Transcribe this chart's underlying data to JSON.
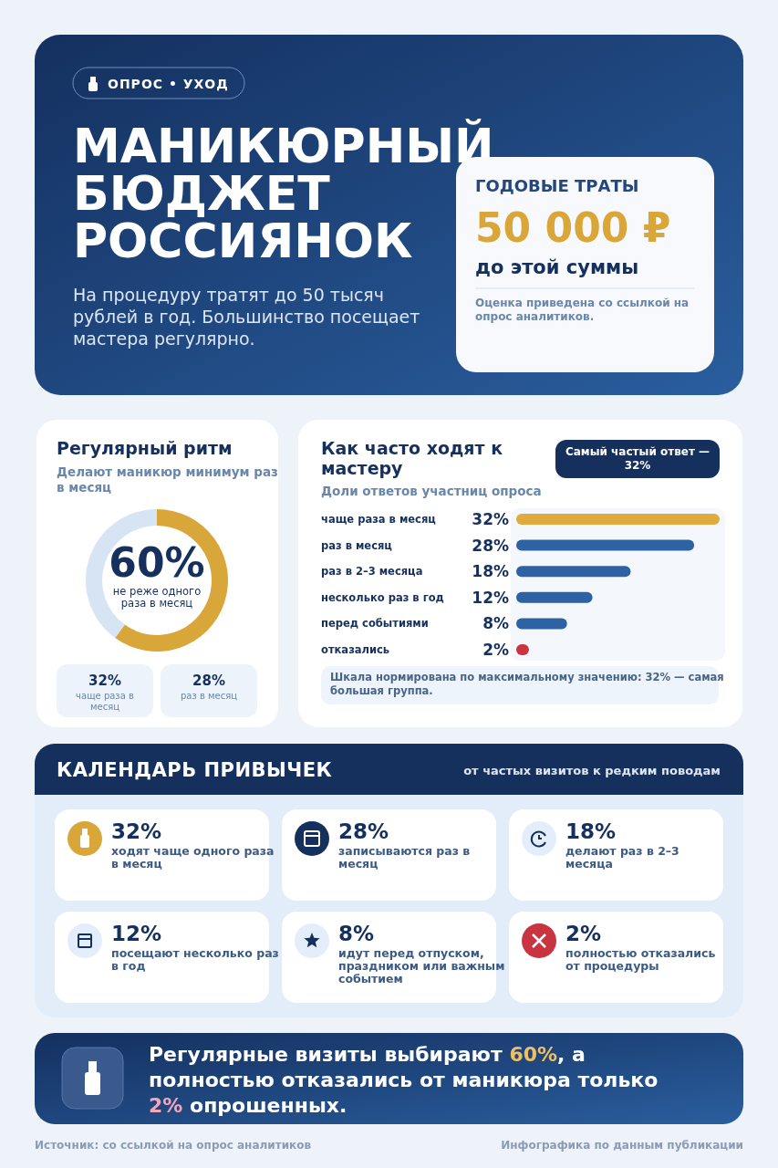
{
  "chart_data": [
    {
      "type": "other",
      "title": "МАНИКЮРНЫЙ БЮДЖЕТ РОССИЯНОК",
      "subtitle": "На процедуру тратят до 50 тысяч рублей в год. Большинство посещает мастера регулярно.",
      "legend_title": "ОПРОС • УХОД",
      "annotations": [
        "ГОДОВЫЕ ТРАТЫ",
        "50 000 ₽",
        "до этой суммы",
        "Оценка приведена со ссылкой на опрос аналитиков."
      ]
    },
    {
      "type": "donut",
      "title": "Регулярный ритм",
      "subtitle": "Делают маникюр минимум раз в месяц",
      "categories": [
        "не реже одного раза в месяц",
        null
      ],
      "values": [
        60,
        40
      ],
      "colors": [
        "#d9a63a",
        "#d6e4f4"
      ],
      "value_labels": [
        "60%",
        null
      ],
      "annotations": [
        "32%",
        "чаще раза в месяц",
        "28%",
        "раз в месяц"
      ]
    },
    {
      "type": "bar",
      "orientation": "horizontal",
      "title": "Как часто ходят к мастеру",
      "subtitle": "Доли ответов участниц опроса",
      "categories": [
        "чаще раза в месяц",
        "раз в месяц",
        "раз в 2–3 месяца",
        "несколько раз в год",
        "перед событиями",
        "отказались"
      ],
      "values": [
        32,
        28,
        18,
        12,
        8,
        2
      ],
      "colors": [
        "#e0aa3e",
        "#2f62a3",
        "#2f62a3",
        "#2f62a3",
        "#2f62a3",
        "#c8343f"
      ],
      "value_labels": [
        "32%",
        "28%",
        "18%",
        "12%",
        "8%",
        "2%"
      ],
      "xlim": [
        0,
        32
      ],
      "annotations": [
        "Самый частый ответ — 32%",
        "Шкала нормирована по максимальному значению: 32% — самая большая группа."
      ]
    },
    {
      "type": "other",
      "title": "КАЛЕНДАРЬ ПРИВЫЧЕК",
      "subtitle": "от частых визитов к редким поводам",
      "annotations": [
        "32%",
        "ходят чаще одного раза в месяц",
        "28%",
        "записываются раз в месяц",
        "18%",
        "делают раз в 2–3 месяца",
        "12%",
        "посещают несколько раз в год",
        "8%",
        "идут перед отпуском, праздником или важным событием",
        "2%",
        "полностью отказались от процедуры"
      ]
    },
    {
      "type": "other",
      "title": "Регулярные визиты выбирают 60%, а полностью отказались от маникюра только 2% опрошенных.",
      "annotations": [
        "Источник: со ссылкой на опрос аналитиков",
        "Инфографика по данным публикации"
      ]
    }
  ]
}
